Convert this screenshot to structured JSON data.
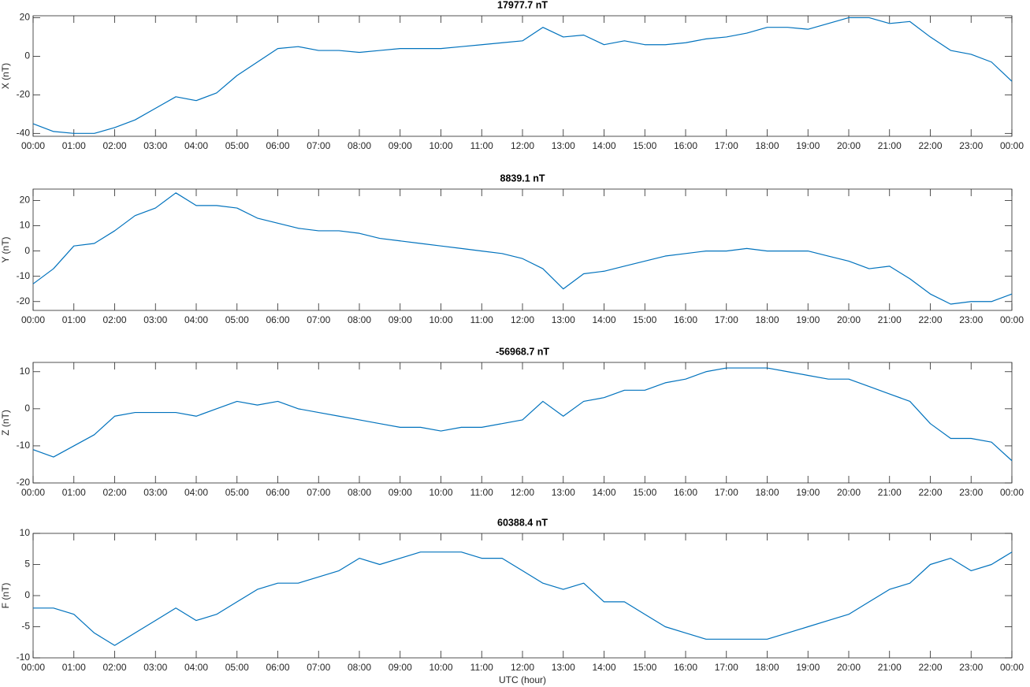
{
  "chart_data": [
    {
      "type": "line",
      "title": "17977.7 nT",
      "ylabel": "X (nT)",
      "color": "#0072bd",
      "x": [
        0,
        0.5,
        1,
        1.5,
        2,
        2.5,
        3,
        3.5,
        4,
        4.5,
        5,
        5.5,
        6,
        6.5,
        7,
        7.5,
        8,
        8.5,
        9,
        9.5,
        10,
        10.5,
        11,
        11.5,
        12,
        12.5,
        13,
        13.5,
        14,
        14.5,
        15,
        15.5,
        16,
        16.5,
        17,
        17.5,
        18,
        18.5,
        19,
        19.5,
        20,
        20.5,
        21,
        21.5,
        22,
        22.5,
        23,
        23.5,
        24
      ],
      "values": [
        -35,
        -39,
        -40,
        -40,
        -37,
        -33,
        -27,
        -21,
        -23,
        -19,
        -10,
        -3,
        4,
        5,
        3,
        3,
        2,
        3,
        4,
        4,
        4,
        5,
        6,
        7,
        8,
        15,
        10,
        11,
        6,
        8,
        6,
        6,
        7,
        9,
        10,
        12,
        15,
        15,
        14,
        17,
        20,
        20,
        17,
        18,
        10,
        3,
        1,
        -3,
        -13
      ],
      "xlim": [
        0,
        24
      ],
      "xticks": [
        {
          "value": 0,
          "label": "00:00"
        },
        {
          "value": 1,
          "label": "01:00"
        },
        {
          "value": 2,
          "label": "02:00"
        },
        {
          "value": 3,
          "label": "03:00"
        },
        {
          "value": 4,
          "label": "04:00"
        },
        {
          "value": 5,
          "label": "05:00"
        },
        {
          "value": 6,
          "label": "06:00"
        },
        {
          "value": 7,
          "label": "07:00"
        },
        {
          "value": 8,
          "label": "08:00"
        },
        {
          "value": 9,
          "label": "09:00"
        },
        {
          "value": 10,
          "label": "10:00"
        },
        {
          "value": 11,
          "label": "11:00"
        },
        {
          "value": 12,
          "label": "12:00"
        },
        {
          "value": 13,
          "label": "13:00"
        },
        {
          "value": 14,
          "label": "14:00"
        },
        {
          "value": 15,
          "label": "15:00"
        },
        {
          "value": 16,
          "label": "16:00"
        },
        {
          "value": 17,
          "label": "17:00"
        },
        {
          "value": 18,
          "label": "18:00"
        },
        {
          "value": 19,
          "label": "19:00"
        },
        {
          "value": 20,
          "label": "20:00"
        },
        {
          "value": 21,
          "label": "21:00"
        },
        {
          "value": 22,
          "label": "22:00"
        },
        {
          "value": 23,
          "label": "23:00"
        },
        {
          "value": 24,
          "label": "00:00"
        }
      ],
      "ylim": [
        -41.5,
        21
      ],
      "yticks": [
        -40,
        -20,
        0,
        20
      ]
    },
    {
      "type": "line",
      "title": "8839.1 nT",
      "ylabel": "Y (nT)",
      "color": "#0072bd",
      "x": [
        0,
        0.5,
        1,
        1.5,
        2,
        2.5,
        3,
        3.5,
        4,
        4.5,
        5,
        5.5,
        6,
        6.5,
        7,
        7.5,
        8,
        8.5,
        9,
        9.5,
        10,
        10.5,
        11,
        11.5,
        12,
        12.5,
        13,
        13.5,
        14,
        14.5,
        15,
        15.5,
        16,
        16.5,
        17,
        17.5,
        18,
        18.5,
        19,
        19.5,
        20,
        20.5,
        21,
        21.5,
        22,
        22.5,
        23,
        23.5,
        24
      ],
      "values": [
        -13,
        -7,
        2,
        3,
        8,
        14,
        17,
        23,
        18,
        18,
        17,
        13,
        11,
        9,
        8,
        8,
        7,
        5,
        4,
        3,
        2,
        1,
        0,
        -1,
        -3,
        -7,
        -15,
        -9,
        -8,
        -6,
        -4,
        -2,
        -1,
        0,
        0,
        1,
        0,
        0,
        0,
        -2,
        -4,
        -7,
        -6,
        -11,
        -17,
        -21,
        -20,
        -20,
        -17
      ],
      "xlim": [
        0,
        24
      ],
      "xticks": [
        {
          "value": 0,
          "label": "00:00"
        },
        {
          "value": 1,
          "label": "01:00"
        },
        {
          "value": 2,
          "label": "02:00"
        },
        {
          "value": 3,
          "label": "03:00"
        },
        {
          "value": 4,
          "label": "04:00"
        },
        {
          "value": 5,
          "label": "05:00"
        },
        {
          "value": 6,
          "label": "06:00"
        },
        {
          "value": 7,
          "label": "07:00"
        },
        {
          "value": 8,
          "label": "08:00"
        },
        {
          "value": 9,
          "label": "09:00"
        },
        {
          "value": 10,
          "label": "10:00"
        },
        {
          "value": 11,
          "label": "11:00"
        },
        {
          "value": 12,
          "label": "12:00"
        },
        {
          "value": 13,
          "label": "13:00"
        },
        {
          "value": 14,
          "label": "14:00"
        },
        {
          "value": 15,
          "label": "15:00"
        },
        {
          "value": 16,
          "label": "16:00"
        },
        {
          "value": 17,
          "label": "17:00"
        },
        {
          "value": 18,
          "label": "18:00"
        },
        {
          "value": 19,
          "label": "19:00"
        },
        {
          "value": 20,
          "label": "20:00"
        },
        {
          "value": 21,
          "label": "21:00"
        },
        {
          "value": 22,
          "label": "22:00"
        },
        {
          "value": 23,
          "label": "23:00"
        },
        {
          "value": 24,
          "label": "00:00"
        }
      ],
      "ylim": [
        -23.5,
        24.5
      ],
      "yticks": [
        -20,
        -10,
        0,
        10,
        20
      ]
    },
    {
      "type": "line",
      "title": "-56968.7 nT",
      "ylabel": "Z (nT)",
      "color": "#0072bd",
      "x": [
        0,
        0.5,
        1,
        1.5,
        2,
        2.5,
        3,
        3.5,
        4,
        4.5,
        5,
        5.5,
        6,
        6.5,
        7,
        7.5,
        8,
        8.5,
        9,
        9.5,
        10,
        10.5,
        11,
        11.5,
        12,
        12.5,
        13,
        13.5,
        14,
        14.5,
        15,
        15.5,
        16,
        16.5,
        17,
        17.5,
        18,
        18.5,
        19,
        19.5,
        20,
        20.5,
        21,
        21.5,
        22,
        22.5,
        23,
        23.5,
        24
      ],
      "values": [
        -11,
        -13,
        -10,
        -7,
        -2,
        -1,
        -1,
        -1,
        -2,
        0,
        2,
        1,
        2,
        0,
        -1,
        -2,
        -3,
        -4,
        -5,
        -5,
        -6,
        -5,
        -5,
        -4,
        -3,
        2,
        -2,
        2,
        3,
        5,
        5,
        7,
        8,
        10,
        11,
        11,
        11,
        10,
        9,
        8,
        8,
        6,
        4,
        2,
        -4,
        -8,
        -8,
        -9,
        -14
      ],
      "xlim": [
        0,
        24
      ],
      "xticks": [
        {
          "value": 0,
          "label": "00:00"
        },
        {
          "value": 1,
          "label": "01:00"
        },
        {
          "value": 2,
          "label": "02:00"
        },
        {
          "value": 3,
          "label": "03:00"
        },
        {
          "value": 4,
          "label": "04:00"
        },
        {
          "value": 5,
          "label": "05:00"
        },
        {
          "value": 6,
          "label": "06:00"
        },
        {
          "value": 7,
          "label": "07:00"
        },
        {
          "value": 8,
          "label": "08:00"
        },
        {
          "value": 9,
          "label": "09:00"
        },
        {
          "value": 10,
          "label": "10:00"
        },
        {
          "value": 11,
          "label": "11:00"
        },
        {
          "value": 12,
          "label": "12:00"
        },
        {
          "value": 13,
          "label": "13:00"
        },
        {
          "value": 14,
          "label": "14:00"
        },
        {
          "value": 15,
          "label": "15:00"
        },
        {
          "value": 16,
          "label": "16:00"
        },
        {
          "value": 17,
          "label": "17:00"
        },
        {
          "value": 18,
          "label": "18:00"
        },
        {
          "value": 19,
          "label": "19:00"
        },
        {
          "value": 20,
          "label": "20:00"
        },
        {
          "value": 21,
          "label": "21:00"
        },
        {
          "value": 22,
          "label": "22:00"
        },
        {
          "value": 23,
          "label": "23:00"
        },
        {
          "value": 24,
          "label": "00:00"
        }
      ],
      "ylim": [
        -20,
        12.5
      ],
      "yticks": [
        -20,
        -10,
        0,
        10
      ]
    },
    {
      "type": "line",
      "title": "60388.4 nT",
      "ylabel": "F (nT)",
      "xlabel": "UTC (hour)",
      "color": "#0072bd",
      "x": [
        0,
        0.5,
        1,
        1.5,
        2,
        2.5,
        3,
        3.5,
        4,
        4.5,
        5,
        5.5,
        6,
        6.5,
        7,
        7.5,
        8,
        8.5,
        9,
        9.5,
        10,
        10.5,
        11,
        11.5,
        12,
        12.5,
        13,
        13.5,
        14,
        14.5,
        15,
        15.5,
        16,
        16.5,
        17,
        17.5,
        18,
        18.5,
        19,
        19.5,
        20,
        20.5,
        21,
        21.5,
        22,
        22.5,
        23,
        23.5,
        24
      ],
      "values": [
        -2,
        -2,
        -3,
        -6,
        -8,
        -6,
        -4,
        -2,
        -4,
        -3,
        -1,
        1,
        2,
        2,
        3,
        4,
        6,
        5,
        6,
        7,
        7,
        7,
        6,
        6,
        4,
        2,
        1,
        2,
        -1,
        -1,
        -3,
        -5,
        -6,
        -7,
        -7,
        -7,
        -7,
        -6,
        -5,
        -4,
        -3,
        -1,
        1,
        2,
        5,
        6,
        4,
        5,
        7
      ],
      "xlim": [
        0,
        24
      ],
      "xticks": [
        {
          "value": 0,
          "label": "00:00"
        },
        {
          "value": 1,
          "label": "01:00"
        },
        {
          "value": 2,
          "label": "02:00"
        },
        {
          "value": 3,
          "label": "03:00"
        },
        {
          "value": 4,
          "label": "04:00"
        },
        {
          "value": 5,
          "label": "05:00"
        },
        {
          "value": 6,
          "label": "06:00"
        },
        {
          "value": 7,
          "label": "07:00"
        },
        {
          "value": 8,
          "label": "08:00"
        },
        {
          "value": 9,
          "label": "09:00"
        },
        {
          "value": 10,
          "label": "10:00"
        },
        {
          "value": 11,
          "label": "11:00"
        },
        {
          "value": 12,
          "label": "12:00"
        },
        {
          "value": 13,
          "label": "13:00"
        },
        {
          "value": 14,
          "label": "14:00"
        },
        {
          "value": 15,
          "label": "15:00"
        },
        {
          "value": 16,
          "label": "16:00"
        },
        {
          "value": 17,
          "label": "17:00"
        },
        {
          "value": 18,
          "label": "18:00"
        },
        {
          "value": 19,
          "label": "19:00"
        },
        {
          "value": 20,
          "label": "20:00"
        },
        {
          "value": 21,
          "label": "21:00"
        },
        {
          "value": 22,
          "label": "22:00"
        },
        {
          "value": 23,
          "label": "23:00"
        },
        {
          "value": 24,
          "label": "00:00"
        }
      ],
      "ylim": [
        -10,
        10
      ],
      "yticks": [
        -10,
        -5,
        0,
        5,
        10
      ]
    }
  ]
}
